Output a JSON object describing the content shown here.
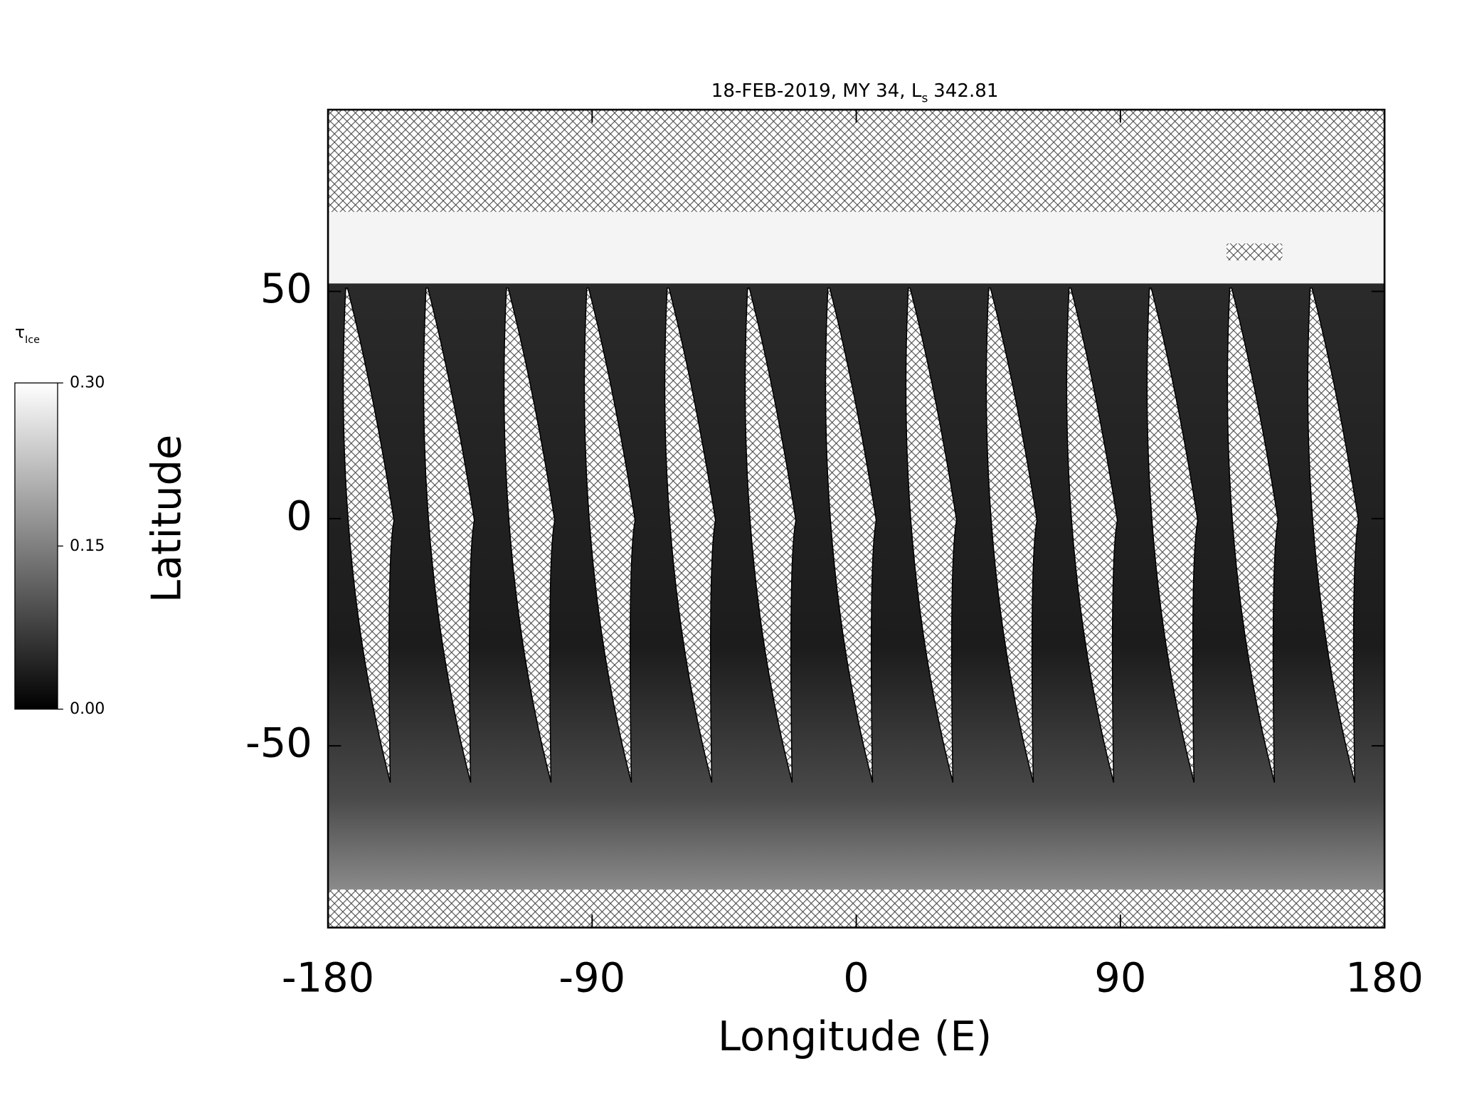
{
  "chart_data": {
    "type": "map",
    "title": "18-FEB-2019, MY 34,",
    "title_symbol": "L",
    "title_symbol_subscript": "s",
    "title_value": "342.81",
    "x_label": "Longitude (E)",
    "y_label": "Latitude",
    "xlim": [
      -180,
      180
    ],
    "xticks": [
      -180,
      -90,
      0,
      90,
      180
    ],
    "ylim": [
      -90,
      90
    ],
    "yticks": [
      -50,
      0,
      50
    ],
    "colorbar": {
      "symbol": "τ",
      "subscript": "Ice",
      "clim": [
        0,
        0.3
      ],
      "ticks": [
        {
          "value": 0,
          "label": "0.00"
        },
        {
          "value": 0.15,
          "label": "0.15"
        },
        {
          "value": 0.3,
          "label": "0.30"
        }
      ],
      "colors": [
        "#000000",
        "#ffffff"
      ]
    }
  }
}
